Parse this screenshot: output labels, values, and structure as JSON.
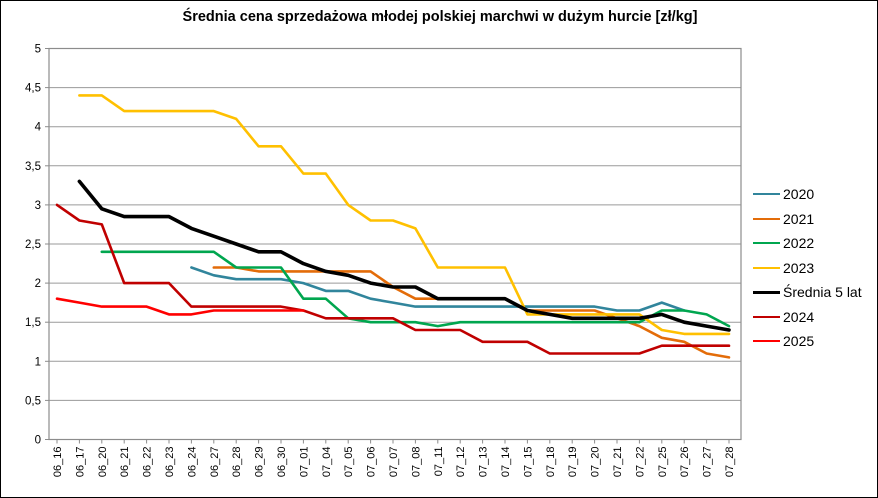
{
  "chart_data": {
    "type": "line",
    "title": "Średnia cena sprzedażowa młodej polskiej marchwi w dużym hurcie [zł/kg]",
    "xlabel": "",
    "ylabel": "",
    "ylim": [
      0,
      5
    ],
    "y_tick_step": 0.5,
    "y_tick_labels": [
      "0",
      "0,5",
      "1",
      "1,5",
      "2",
      "2,5",
      "3",
      "3,5",
      "4",
      "4,5",
      "5"
    ],
    "grid": true,
    "legend_position": "right",
    "categories": [
      "06_16",
      "06_17",
      "06_20",
      "06_21",
      "06_22",
      "06_23",
      "06_24",
      "06_27",
      "06_28",
      "06_29",
      "06_30",
      "07_01",
      "07_04",
      "07_05",
      "07_06",
      "07_07",
      "07_08",
      "07_11",
      "07_12",
      "07_13",
      "07_14",
      "07_15",
      "07_18",
      "07_19",
      "07_20",
      "07_21",
      "07_22",
      "07_25",
      "07_26",
      "07_27",
      "07_28"
    ],
    "series": [
      {
        "name": "2020",
        "color": "#31859C",
        "line_width": 2.6,
        "values": [
          null,
          null,
          null,
          null,
          null,
          null,
          2.2,
          2.1,
          2.05,
          2.05,
          2.05,
          2.0,
          1.9,
          1.9,
          1.8,
          1.75,
          1.7,
          1.7,
          1.7,
          1.7,
          1.7,
          1.7,
          1.7,
          1.7,
          1.7,
          1.65,
          1.65,
          1.75,
          1.65,
          null,
          null
        ]
      },
      {
        "name": "2021",
        "color": "#E36C09",
        "line_width": 2.6,
        "values": [
          null,
          null,
          null,
          null,
          null,
          null,
          null,
          2.2,
          2.2,
          2.15,
          2.15,
          2.15,
          2.15,
          2.15,
          2.15,
          1.95,
          1.8,
          1.8,
          1.8,
          1.8,
          1.8,
          1.65,
          1.65,
          1.65,
          1.65,
          1.55,
          1.45,
          1.3,
          1.25,
          1.1,
          1.05
        ]
      },
      {
        "name": "2022",
        "color": "#00A64F",
        "line_width": 2.6,
        "values": [
          null,
          null,
          2.4,
          2.4,
          2.4,
          2.4,
          2.4,
          2.4,
          2.2,
          2.2,
          2.2,
          1.8,
          1.8,
          1.55,
          1.5,
          1.5,
          1.5,
          1.45,
          1.5,
          1.5,
          1.5,
          1.5,
          1.5,
          1.5,
          1.5,
          1.5,
          1.5,
          1.65,
          1.65,
          1.6,
          1.45
        ]
      },
      {
        "name": "2023",
        "color": "#FFC000",
        "line_width": 2.6,
        "values": [
          null,
          4.4,
          4.4,
          4.2,
          4.2,
          4.2,
          4.2,
          4.2,
          4.1,
          3.75,
          3.75,
          3.4,
          3.4,
          3.0,
          2.8,
          2.8,
          2.7,
          2.2,
          2.2,
          2.2,
          2.2,
          1.6,
          1.6,
          1.6,
          1.6,
          1.6,
          1.6,
          1.4,
          1.35,
          1.35,
          1.35
        ]
      },
      {
        "name": "Średnia 5 lat",
        "color": "#000000",
        "line_width": 3.6,
        "values": [
          null,
          3.3,
          2.95,
          2.85,
          2.85,
          2.85,
          2.7,
          2.6,
          2.5,
          2.4,
          2.4,
          2.25,
          2.15,
          2.1,
          2.0,
          1.95,
          1.95,
          1.8,
          1.8,
          1.8,
          1.8,
          1.65,
          1.6,
          1.55,
          1.55,
          1.55,
          1.55,
          1.6,
          1.5,
          1.45,
          1.4
        ]
      },
      {
        "name": "2024",
        "color": "#C00000",
        "line_width": 2.6,
        "values": [
          3.0,
          2.8,
          2.75,
          2.0,
          2.0,
          2.0,
          1.7,
          1.7,
          1.7,
          1.7,
          1.7,
          1.65,
          1.55,
          1.55,
          1.55,
          1.55,
          1.4,
          1.4,
          1.4,
          1.25,
          1.25,
          1.25,
          1.1,
          1.1,
          1.1,
          1.1,
          1.1,
          1.2,
          1.2,
          1.2,
          1.2
        ]
      },
      {
        "name": "2025",
        "color": "#FF0000",
        "line_width": 2.6,
        "values": [
          1.8,
          1.75,
          1.7,
          1.7,
          1.7,
          1.6,
          1.6,
          1.65,
          1.65,
          1.65,
          1.65,
          1.65,
          null,
          null,
          null,
          null,
          null,
          null,
          null,
          null,
          null,
          null,
          null,
          null,
          null,
          null,
          null,
          null,
          null,
          null,
          null
        ]
      }
    ]
  }
}
